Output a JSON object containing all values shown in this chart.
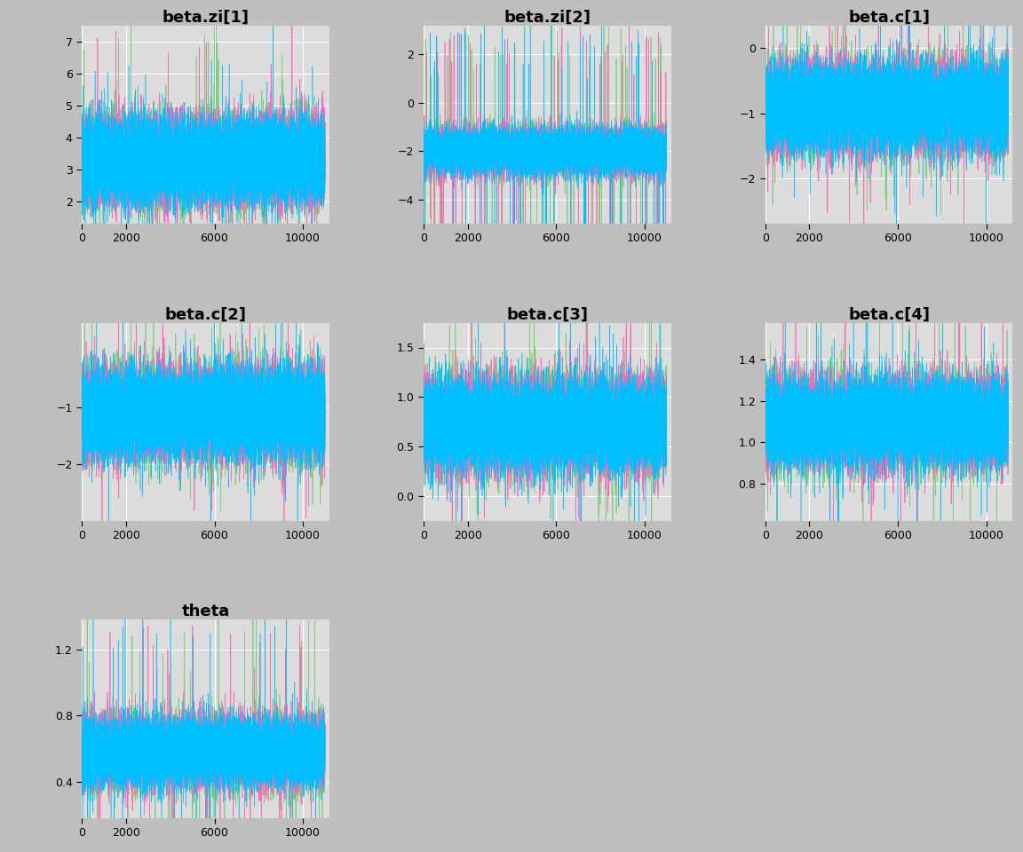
{
  "panels": [
    {
      "title": "beta.zi[1]",
      "ylim": [
        1.3,
        7.5
      ],
      "yticks": [
        2,
        3,
        4,
        5,
        6,
        7
      ],
      "mean": 3.3,
      "std": 0.65,
      "spike_prob": 0.002,
      "spike_scale": 2.5
    },
    {
      "title": "beta.zi[2]",
      "ylim": [
        -5.0,
        3.2
      ],
      "yticks": [
        -4,
        -2,
        0,
        2
      ],
      "mean": -2.0,
      "std": 0.45,
      "spike_prob": 0.006,
      "spike_scale": 3.5
    },
    {
      "title": "beta.c[1]",
      "ylim": [
        -2.7,
        0.35
      ],
      "yticks": [
        0.0,
        -1.0,
        -2.0
      ],
      "mean": -0.9,
      "std": 0.32,
      "spike_prob": 0.002,
      "spike_scale": 1.2
    },
    {
      "title": "beta.c[2]",
      "ylim": [
        -3.0,
        0.5
      ],
      "yticks": [
        -2.0,
        -1.0
      ],
      "mean": -1.1,
      "std": 0.38,
      "spike_prob": 0.002,
      "spike_scale": 1.2
    },
    {
      "title": "beta.c[3]",
      "ylim": [
        -0.25,
        1.75
      ],
      "yticks": [
        0.0,
        0.5,
        1.0,
        1.5
      ],
      "mean": 0.72,
      "std": 0.22,
      "spike_prob": 0.002,
      "spike_scale": 0.8
    },
    {
      "title": "beta.c[4]",
      "ylim": [
        0.62,
        1.58
      ],
      "yticks": [
        0.8,
        1.0,
        1.2,
        1.4
      ],
      "mean": 1.1,
      "std": 0.1,
      "spike_prob": 0.002,
      "spike_scale": 0.4
    },
    {
      "title": "theta",
      "ylim": [
        0.18,
        1.38
      ],
      "yticks": [
        0.4,
        0.8,
        1.2
      ],
      "mean": 0.58,
      "std": 0.1,
      "spike_prob": 0.003,
      "spike_scale": 0.55
    }
  ],
  "n_iter": 11000,
  "n_chains": 3,
  "chain_colors": [
    "#00BFFF",
    "#FF69B4",
    "#7CCD7C"
  ],
  "bg_color": "#DCDCDC",
  "outer_bg": "#BEBEBE",
  "title_fontsize": 13,
  "tick_fontsize": 9,
  "grid_color": "#FFFFFF",
  "n_cols": 3,
  "seed": 42
}
